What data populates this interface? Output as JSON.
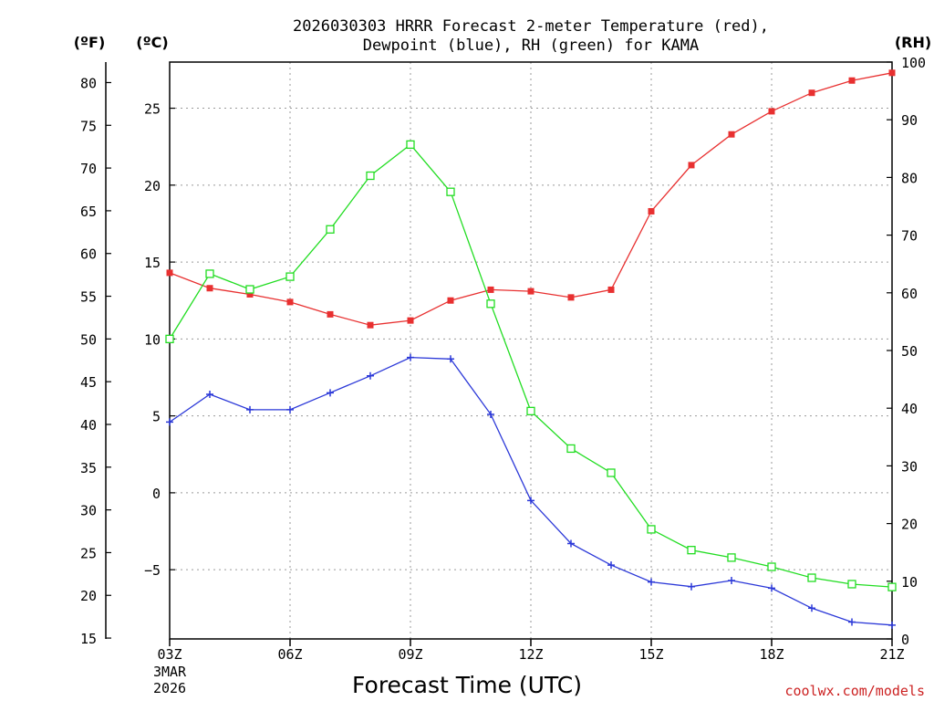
{
  "chart_data": {
    "type": "line",
    "title_line1": "2026030303 HRRR Forecast 2-meter Temperature (red),",
    "title_line2": "Dewpoint (blue), RH (green) for KAMA",
    "xlabel": "Forecast Time (UTC)",
    "credit": "coolwx.com/models",
    "unit_f": "(ºF)",
    "unit_c": "(ºC)",
    "unit_rh": "(RH)",
    "x_ticks": [
      "03Z",
      "06Z",
      "09Z",
      "12Z",
      "15Z",
      "18Z",
      "21Z"
    ],
    "x_date_line1": "3MAR",
    "x_date_line2": "2026",
    "x_hours": [
      3,
      4,
      5,
      6,
      7,
      8,
      9,
      10,
      11,
      12,
      13,
      14,
      15,
      16,
      17,
      18,
      19,
      20,
      21
    ],
    "xlim": [
      3,
      21
    ],
    "ylim_c": [
      -9.5,
      28.0
    ],
    "ylim_rh": [
      0,
      100
    ],
    "ylim_f": [
      14.9,
      82.4
    ],
    "y_ticks_c": [
      "25",
      "20",
      "15",
      "10",
      "5",
      "0",
      "−5"
    ],
    "y_ticks_c_values": [
      25,
      20,
      15,
      10,
      5,
      0,
      -5
    ],
    "y_ticks_f": [
      "80",
      "75",
      "70",
      "65",
      "60",
      "55",
      "50",
      "45",
      "40",
      "35",
      "30",
      "25",
      "20",
      "15"
    ],
    "y_ticks_f_values": [
      80,
      75,
      70,
      65,
      60,
      55,
      50,
      45,
      40,
      35,
      30,
      25,
      20,
      15
    ],
    "y_ticks_rh": [
      "100",
      "90",
      "80",
      "70",
      "60",
      "50",
      "40",
      "30",
      "20",
      "10",
      "0"
    ],
    "y_ticks_rh_values": [
      100,
      90,
      80,
      70,
      60,
      50,
      40,
      30,
      20,
      10,
      0
    ],
    "colors": {
      "temperature": "#e83030",
      "dewpoint": "#2b38d8",
      "rh": "#22dd22"
    },
    "series": [
      {
        "name": "Temperature (°C)",
        "axis": "c",
        "marker": "filled-square",
        "values": [
          14.3,
          13.3,
          12.9,
          12.4,
          11.6,
          10.9,
          11.2,
          12.5,
          13.2,
          13.1,
          12.7,
          13.2,
          18.3,
          21.3,
          23.3,
          24.8,
          26.0,
          26.8,
          27.3
        ]
      },
      {
        "name": "Dewpoint (°C)",
        "axis": "c",
        "marker": "plus",
        "values": [
          4.6,
          6.4,
          5.4,
          5.4,
          6.5,
          7.6,
          8.8,
          8.7,
          5.1,
          -0.5,
          -3.3,
          -4.7,
          -5.8,
          -6.1,
          -5.7,
          -6.2,
          -7.5,
          -8.4,
          -8.6
        ]
      },
      {
        "name": "RH (%)",
        "axis": "rh",
        "marker": "open-square",
        "values": [
          52.0,
          63.3,
          60.6,
          62.8,
          71.0,
          80.3,
          85.7,
          77.5,
          58.1,
          39.5,
          33.0,
          28.8,
          19.0,
          15.4,
          14.1,
          12.5,
          10.6,
          9.5,
          9.0
        ]
      }
    ]
  }
}
